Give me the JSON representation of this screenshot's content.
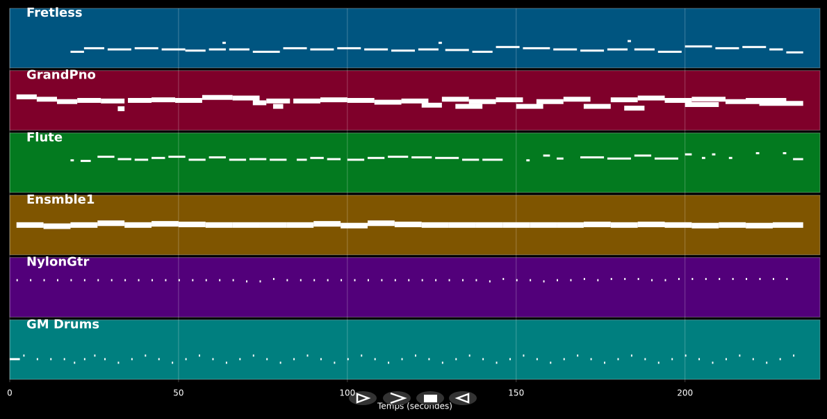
{
  "chart_data": {
    "type": "pianoroll",
    "xlabel": "Temps (secondes)",
    "xlim": [
      0,
      240
    ],
    "xticks": [
      0,
      50,
      100,
      150,
      200
    ],
    "grid": true,
    "series": [
      {
        "name": "Fretless",
        "color": "#005580",
        "notes": [
          [
            18,
            22,
            0.27
          ],
          [
            22,
            28,
            0.33
          ],
          [
            29,
            36,
            0.31
          ],
          [
            37,
            44,
            0.33
          ],
          [
            45,
            52,
            0.31
          ],
          [
            52,
            58,
            0.29
          ],
          [
            59,
            64,
            0.31
          ],
          [
            63,
            64,
            0.42
          ],
          [
            65,
            71,
            0.31
          ],
          [
            72,
            80,
            0.27
          ],
          [
            81,
            88,
            0.33
          ],
          [
            89,
            96,
            0.31
          ],
          [
            97,
            104,
            0.33
          ],
          [
            105,
            112,
            0.31
          ],
          [
            113,
            120,
            0.29
          ],
          [
            121,
            127,
            0.31
          ],
          [
            127,
            128,
            0.42
          ],
          [
            129,
            136,
            0.3
          ],
          [
            137,
            143,
            0.27
          ],
          [
            144,
            151,
            0.35
          ],
          [
            152,
            160,
            0.33
          ],
          [
            161,
            168,
            0.31
          ],
          [
            169,
            176,
            0.29
          ],
          [
            177,
            183,
            0.31
          ],
          [
            183,
            184,
            0.45
          ],
          [
            185,
            191,
            0.31
          ],
          [
            192,
            199,
            0.27
          ],
          [
            200,
            208,
            0.36
          ],
          [
            209,
            216,
            0.33
          ],
          [
            217,
            224,
            0.35
          ],
          [
            225,
            229,
            0.31
          ],
          [
            230,
            235,
            0.26
          ]
        ]
      },
      {
        "name": "GrandPno",
        "color": "#7f002a",
        "notes": [
          [
            2,
            8,
            0.56
          ],
          [
            8,
            14,
            0.52
          ],
          [
            14,
            20,
            0.48
          ],
          [
            20,
            27,
            0.5
          ],
          [
            27,
            34,
            0.49
          ],
          [
            32,
            34,
            0.36
          ],
          [
            35,
            42,
            0.5
          ],
          [
            42,
            49,
            0.51
          ],
          [
            49,
            57,
            0.5
          ],
          [
            57,
            66,
            0.55
          ],
          [
            66,
            74,
            0.54
          ],
          [
            72,
            76,
            0.46
          ],
          [
            76,
            83,
            0.49
          ],
          [
            78,
            81,
            0.4
          ],
          [
            84,
            92,
            0.49
          ],
          [
            92,
            100,
            0.51
          ],
          [
            100,
            108,
            0.5
          ],
          [
            108,
            116,
            0.47
          ],
          [
            116,
            124,
            0.49
          ],
          [
            122,
            128,
            0.42
          ],
          [
            128,
            136,
            0.52
          ],
          [
            132,
            140,
            0.4
          ],
          [
            136,
            144,
            0.48
          ],
          [
            144,
            152,
            0.51
          ],
          [
            150,
            158,
            0.4
          ],
          [
            156,
            164,
            0.48
          ],
          [
            164,
            172,
            0.52
          ],
          [
            170,
            178,
            0.4
          ],
          [
            178,
            186,
            0.51
          ],
          [
            182,
            188,
            0.37
          ],
          [
            186,
            194,
            0.54
          ],
          [
            194,
            202,
            0.5
          ],
          [
            200,
            210,
            0.43
          ],
          [
            202,
            212,
            0.52
          ],
          [
            212,
            222,
            0.48
          ],
          [
            218,
            230,
            0.5
          ],
          [
            222,
            235,
            0.45
          ]
        ]
      },
      {
        "name": "Flute",
        "color": "#037a1f",
        "notes": [
          [
            18,
            19,
            0.54
          ],
          [
            21,
            24,
            0.53
          ],
          [
            26,
            31,
            0.6
          ],
          [
            32,
            36,
            0.56
          ],
          [
            37,
            41,
            0.55
          ],
          [
            42,
            46,
            0.58
          ],
          [
            47,
            52,
            0.6
          ],
          [
            53,
            58,
            0.55
          ],
          [
            59,
            64,
            0.59
          ],
          [
            65,
            70,
            0.55
          ],
          [
            71,
            76,
            0.56
          ],
          [
            77,
            82,
            0.55
          ],
          [
            85,
            88,
            0.55
          ],
          [
            89,
            93,
            0.58
          ],
          [
            94,
            98,
            0.56
          ],
          [
            100,
            105,
            0.55
          ],
          [
            106,
            111,
            0.58
          ],
          [
            112,
            118,
            0.6
          ],
          [
            119,
            125,
            0.59
          ],
          [
            126,
            133,
            0.58
          ],
          [
            134,
            139,
            0.55
          ],
          [
            140,
            146,
            0.55
          ],
          [
            153,
            154,
            0.54
          ],
          [
            158,
            160,
            0.62
          ],
          [
            162,
            164,
            0.57
          ],
          [
            169,
            176,
            0.59
          ],
          [
            177,
            184,
            0.57
          ],
          [
            185,
            190,
            0.62
          ],
          [
            191,
            198,
            0.57
          ],
          [
            200,
            202,
            0.64
          ],
          [
            205,
            206,
            0.58
          ],
          [
            208,
            209,
            0.64
          ],
          [
            213,
            214,
            0.58
          ],
          [
            221,
            222,
            0.66
          ],
          [
            229,
            230,
            0.66
          ],
          [
            232,
            235,
            0.56
          ]
        ]
      },
      {
        "name": "Ensmble1",
        "color": "#7f5500",
        "notes": [
          [
            2,
            10,
            0.5
          ],
          [
            10,
            18,
            0.48
          ],
          [
            18,
            26,
            0.5
          ],
          [
            26,
            34,
            0.53
          ],
          [
            34,
            42,
            0.5
          ],
          [
            42,
            50,
            0.52
          ],
          [
            50,
            58,
            0.51
          ],
          [
            58,
            66,
            0.5
          ],
          [
            66,
            74,
            0.5
          ],
          [
            74,
            82,
            0.5
          ],
          [
            82,
            90,
            0.5
          ],
          [
            90,
            98,
            0.52
          ],
          [
            98,
            106,
            0.49
          ],
          [
            106,
            114,
            0.53
          ],
          [
            114,
            122,
            0.51
          ],
          [
            122,
            130,
            0.5
          ],
          [
            130,
            138,
            0.5
          ],
          [
            138,
            146,
            0.5
          ],
          [
            146,
            154,
            0.5
          ],
          [
            154,
            162,
            0.5
          ],
          [
            162,
            170,
            0.5
          ],
          [
            170,
            178,
            0.51
          ],
          [
            178,
            186,
            0.5
          ],
          [
            186,
            194,
            0.51
          ],
          [
            194,
            202,
            0.5
          ],
          [
            202,
            210,
            0.49
          ],
          [
            210,
            218,
            0.5
          ],
          [
            218,
            226,
            0.49
          ],
          [
            226,
            235,
            0.5
          ]
        ]
      },
      {
        "name": "NylonGtr",
        "color": "#52007a",
        "notes": [
          [
            2,
            2.4,
            0.62
          ],
          [
            6,
            6.4,
            0.62
          ],
          [
            10,
            10.4,
            0.62
          ],
          [
            14,
            14.4,
            0.62
          ],
          [
            18,
            18.4,
            0.62
          ],
          [
            22,
            22.4,
            0.62
          ],
          [
            26,
            26.4,
            0.62
          ],
          [
            30,
            30.4,
            0.62
          ],
          [
            34,
            34.4,
            0.62
          ],
          [
            38,
            38.4,
            0.62
          ],
          [
            42,
            42.4,
            0.62
          ],
          [
            46,
            46.4,
            0.62
          ],
          [
            50,
            50.4,
            0.62
          ],
          [
            54,
            54.4,
            0.62
          ],
          [
            58,
            58.4,
            0.62
          ],
          [
            62,
            62.4,
            0.62
          ],
          [
            66,
            66.4,
            0.62
          ],
          [
            70,
            70.4,
            0.6
          ],
          [
            74,
            74.4,
            0.6
          ],
          [
            78,
            78.4,
            0.64
          ],
          [
            82,
            82.4,
            0.62
          ],
          [
            86,
            86.4,
            0.62
          ],
          [
            90,
            90.4,
            0.62
          ],
          [
            94,
            94.4,
            0.62
          ],
          [
            98,
            98.4,
            0.62
          ],
          [
            102,
            102.4,
            0.62
          ],
          [
            106,
            106.4,
            0.62
          ],
          [
            110,
            110.4,
            0.62
          ],
          [
            114,
            114.4,
            0.62
          ],
          [
            118,
            118.4,
            0.62
          ],
          [
            122,
            122.4,
            0.62
          ],
          [
            126,
            126.4,
            0.62
          ],
          [
            130,
            130.4,
            0.62
          ],
          [
            134,
            134.4,
            0.62
          ],
          [
            138,
            138.4,
            0.62
          ],
          [
            142,
            142.4,
            0.6
          ],
          [
            146,
            146.4,
            0.64
          ],
          [
            150,
            150.4,
            0.62
          ],
          [
            154,
            154.4,
            0.62
          ],
          [
            158,
            158.4,
            0.6
          ],
          [
            162,
            162.4,
            0.62
          ],
          [
            166,
            166.4,
            0.62
          ],
          [
            170,
            170.4,
            0.64
          ],
          [
            174,
            174.4,
            0.62
          ],
          [
            178,
            178.4,
            0.64
          ],
          [
            182,
            182.4,
            0.64
          ],
          [
            186,
            186.4,
            0.64
          ],
          [
            190,
            190.4,
            0.62
          ],
          [
            194,
            194.4,
            0.62
          ],
          [
            198,
            198.4,
            0.64
          ],
          [
            202,
            202.4,
            0.64
          ],
          [
            206,
            206.4,
            0.64
          ],
          [
            210,
            210.4,
            0.64
          ],
          [
            214,
            214.4,
            0.64
          ],
          [
            218,
            218.4,
            0.64
          ],
          [
            222,
            222.4,
            0.64
          ],
          [
            226,
            226.4,
            0.64
          ],
          [
            230,
            230.4,
            0.64
          ]
        ]
      },
      {
        "name": "GM Drums",
        "color": "#007f7f",
        "notes": [
          [
            0,
            3,
            0.34
          ],
          [
            4,
            4.4,
            0.4
          ],
          [
            8,
            8.4,
            0.34
          ],
          [
            12,
            12.4,
            0.34
          ],
          [
            16,
            16.4,
            0.34
          ],
          [
            19,
            19.4,
            0.28
          ],
          [
            22,
            22.4,
            0.34
          ],
          [
            25,
            25.4,
            0.4
          ],
          [
            28,
            28.4,
            0.34
          ],
          [
            32,
            32.4,
            0.28
          ],
          [
            36,
            36.4,
            0.34
          ],
          [
            40,
            40.4,
            0.4
          ],
          [
            44,
            44.4,
            0.34
          ],
          [
            48,
            48.4,
            0.28
          ],
          [
            52,
            52.4,
            0.34
          ],
          [
            56,
            56.4,
            0.4
          ],
          [
            60,
            60.4,
            0.34
          ],
          [
            64,
            64.4,
            0.28
          ],
          [
            68,
            68.4,
            0.34
          ],
          [
            72,
            72.4,
            0.4
          ],
          [
            76,
            76.4,
            0.34
          ],
          [
            80,
            80.4,
            0.28
          ],
          [
            84,
            84.4,
            0.34
          ],
          [
            88,
            88.4,
            0.4
          ],
          [
            92,
            92.4,
            0.34
          ],
          [
            96,
            96.4,
            0.28
          ],
          [
            100,
            100.4,
            0.34
          ],
          [
            104,
            104.4,
            0.4
          ],
          [
            108,
            108.4,
            0.34
          ],
          [
            112,
            112.4,
            0.28
          ],
          [
            116,
            116.4,
            0.34
          ],
          [
            120,
            120.4,
            0.4
          ],
          [
            124,
            124.4,
            0.34
          ],
          [
            128,
            128.4,
            0.28
          ],
          [
            132,
            132.4,
            0.34
          ],
          [
            136,
            136.4,
            0.4
          ],
          [
            140,
            140.4,
            0.34
          ],
          [
            144,
            144.4,
            0.28
          ],
          [
            148,
            148.4,
            0.34
          ],
          [
            152,
            152.4,
            0.4
          ],
          [
            156,
            156.4,
            0.34
          ],
          [
            160,
            160.4,
            0.28
          ],
          [
            164,
            164.4,
            0.34
          ],
          [
            168,
            168.4,
            0.4
          ],
          [
            172,
            172.4,
            0.34
          ],
          [
            176,
            176.4,
            0.28
          ],
          [
            180,
            180.4,
            0.34
          ],
          [
            184,
            184.4,
            0.4
          ],
          [
            188,
            188.4,
            0.34
          ],
          [
            192,
            192.4,
            0.28
          ],
          [
            196,
            196.4,
            0.34
          ],
          [
            200,
            200.4,
            0.4
          ],
          [
            204,
            204.4,
            0.34
          ],
          [
            208,
            208.4,
            0.28
          ],
          [
            212,
            212.4,
            0.34
          ],
          [
            216,
            216.4,
            0.4
          ],
          [
            220,
            220.4,
            0.34
          ],
          [
            224,
            224.4,
            0.28
          ],
          [
            228,
            228.4,
            0.34
          ],
          [
            232,
            232.4,
            0.4
          ]
        ]
      }
    ]
  }
}
